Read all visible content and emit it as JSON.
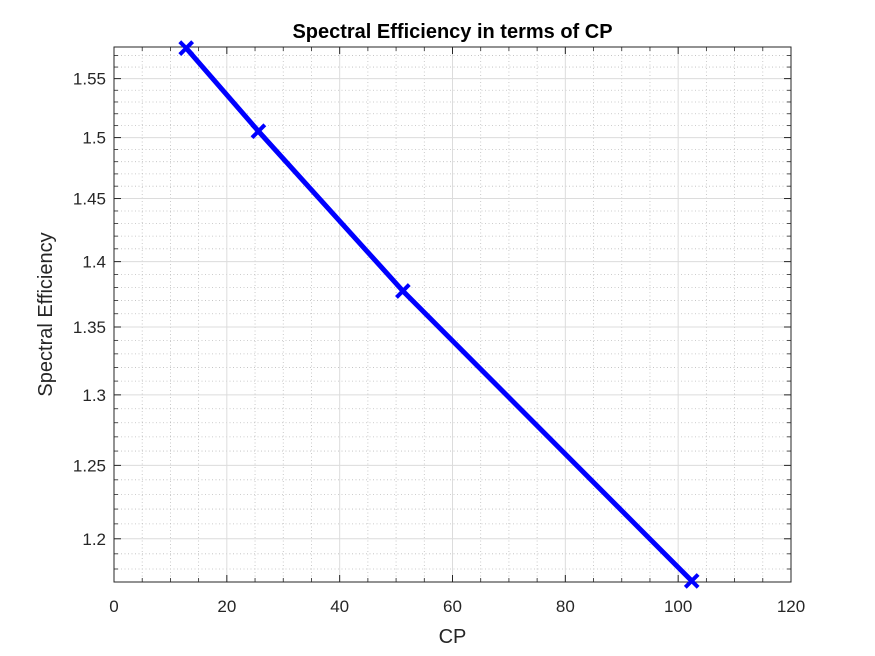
{
  "chart_data": {
    "type": "line",
    "title": "Spectral Efficiency in terms of CP",
    "xlabel": "CP",
    "ylabel": "Spectral Efficiency",
    "xlim": [
      0,
      120
    ],
    "ylim": [
      1.1715,
      1.5775
    ],
    "xticks": [
      0,
      20,
      40,
      60,
      80,
      100,
      120
    ],
    "xtick_labels": [
      "0",
      "20",
      "40",
      "60",
      "80",
      "100",
      "120"
    ],
    "yticks": [
      1.2,
      1.25,
      1.3,
      1.35,
      1.4,
      1.45,
      1.5,
      1.55
    ],
    "ytick_labels": [
      "1.2",
      "1.25",
      "1.3",
      "1.35",
      "1.4",
      "1.45",
      "1.5",
      "1.55"
    ],
    "yscale": "log",
    "grid": true,
    "minor_grid": true,
    "series": [
      {
        "x": [
          12.8,
          25.6,
          51.2,
          102.4
        ],
        "y": [
          1.5765,
          1.5053,
          1.3773,
          1.1722
        ],
        "color": "#0000ff",
        "marker": "x"
      }
    ]
  }
}
